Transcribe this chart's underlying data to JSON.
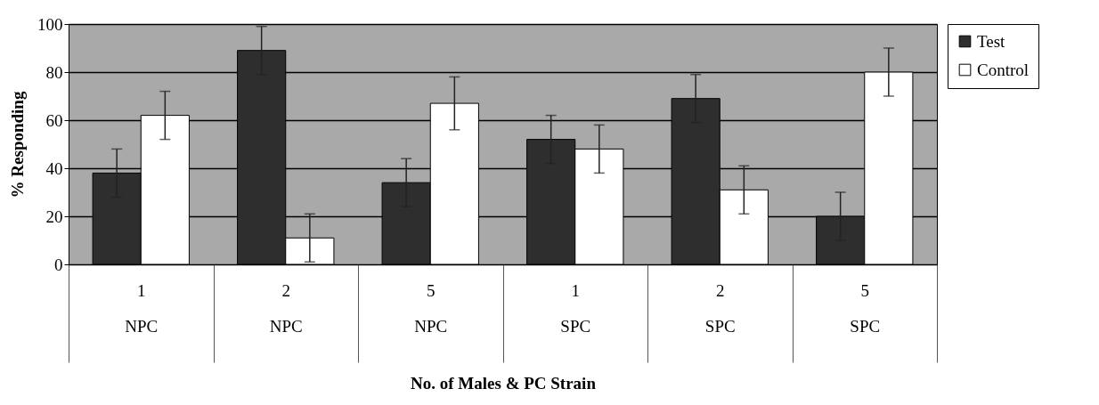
{
  "chart_data": {
    "type": "bar",
    "xlabel": "No. of Males & PC Strain",
    "ylabel": "% Responding",
    "categories": [
      "1\nNPC",
      "2\nNPC",
      "5\nNPC",
      "1\nSPC",
      "2\nSPC",
      "5\nSPC"
    ],
    "series": [
      {
        "name": "Test",
        "color": "#2e2e2e",
        "values": [
          38,
          89,
          34,
          52,
          69,
          20
        ],
        "errors": [
          10,
          10,
          10,
          10,
          10,
          10
        ]
      },
      {
        "name": "Control",
        "color": "#ffffff",
        "values": [
          62,
          11,
          67,
          48,
          31,
          80
        ],
        "errors": [
          10,
          10,
          11,
          10,
          10,
          10
        ]
      }
    ],
    "ylim": [
      0,
      100
    ],
    "yticks": [
      0,
      20,
      40,
      60,
      80,
      100
    ],
    "grid": "y",
    "legend": "right"
  }
}
